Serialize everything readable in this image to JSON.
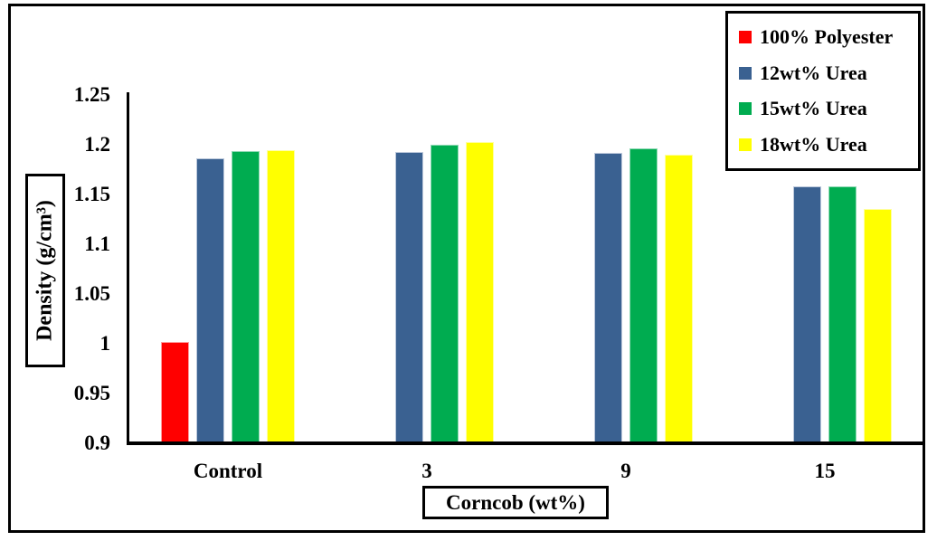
{
  "chart_data": {
    "type": "bar",
    "title": "",
    "xlabel": "Corncob (wt%)",
    "ylabel": "Density (g/cm³)",
    "categories": [
      "Control",
      "3",
      "9",
      "15"
    ],
    "series": [
      {
        "name": "100% Polyester",
        "color": "#FF0000",
        "edge": "#FF9B9B",
        "values": [
          1.001,
          null,
          null,
          null
        ]
      },
      {
        "name": "12wt% Urea",
        "color": "#3A6191",
        "edge": "#BCC8DB",
        "values": [
          1.186,
          1.192,
          1.191,
          1.158
        ]
      },
      {
        "name": "15wt% Urea",
        "color": "#00AC50",
        "edge": "#8FD9B4",
        "values": [
          1.193,
          1.2,
          1.196,
          1.158
        ]
      },
      {
        "name": "18wt% Urea",
        "color": "#FFFF00",
        "edge": "#FFFFA0",
        "values": [
          1.194,
          1.202,
          1.19,
          1.135
        ]
      }
    ],
    "ylim": [
      0.9,
      1.25
    ],
    "y_ticks": [
      {
        "value": 1.25,
        "label": "1.25"
      },
      {
        "value": 1.2,
        "label": "1.2"
      },
      {
        "value": 1.15,
        "label": "1.15"
      },
      {
        "value": 1.1,
        "label": "1.1"
      },
      {
        "value": 1.05,
        "label": "1.05"
      },
      {
        "value": 1.0,
        "label": "1"
      },
      {
        "value": 0.95,
        "label": "0.95"
      },
      {
        "value": 0.9,
        "label": "0.9"
      }
    ],
    "grid": false,
    "legend_position": "top-right",
    "frame_color": "#000000"
  }
}
